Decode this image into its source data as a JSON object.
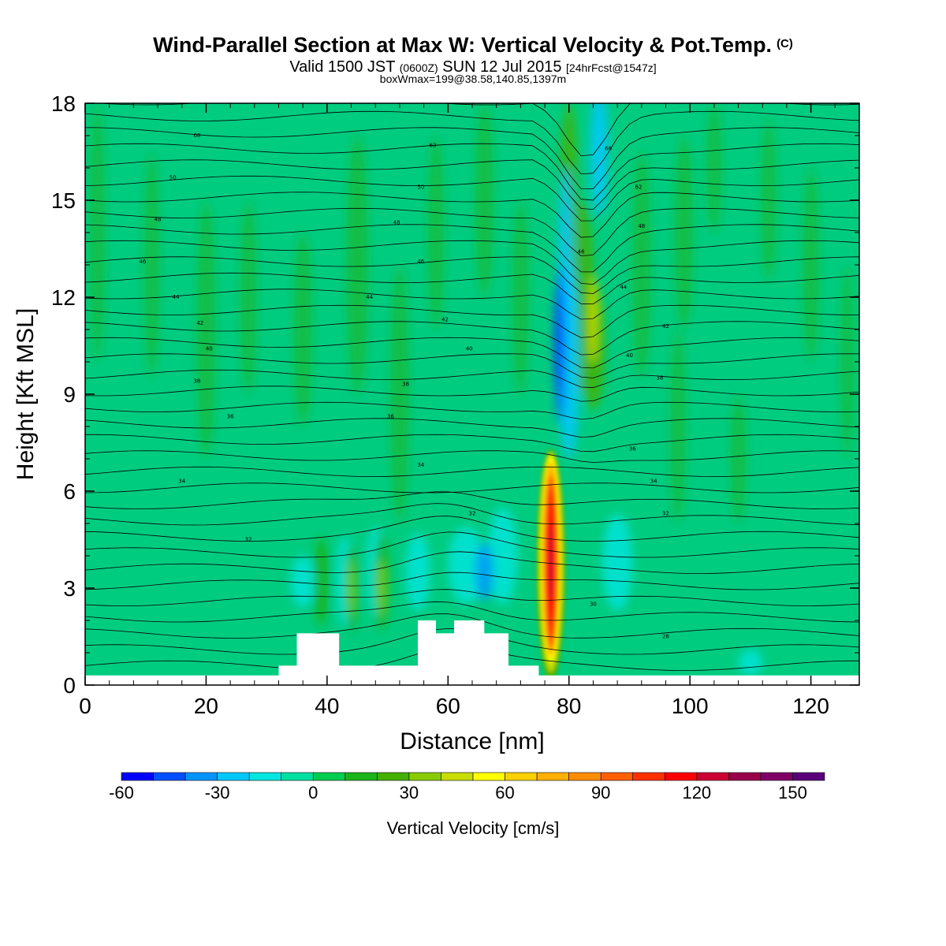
{
  "header": {
    "title": "Wind-Parallel Section at Max W: Vertical Velocity & Pot.Temp.",
    "title_units": "(C)",
    "valid_prefix": "Valid 1500 JST",
    "valid_utc": "(0600Z)",
    "valid_date": "SUN 12 Jul 2015",
    "forecast_info": "[24hrFcst@1547z]",
    "box_info": "boxWmax=199@38.58,140.85,1397m"
  },
  "chart_data": {
    "type": "heatmap",
    "xlabel": "Distance [nm]",
    "ylabel": "Height [Kft MSL]",
    "xlim": [
      0,
      128
    ],
    "ylim": [
      0,
      18
    ],
    "xticks": [
      0,
      20,
      40,
      60,
      80,
      100,
      120
    ],
    "yticks": [
      0,
      3,
      6,
      9,
      12,
      15,
      18
    ],
    "colorbar": {
      "label": "Vertical Velocity [cm/s]",
      "ticks": [
        -60,
        -30,
        0,
        30,
        60,
        90,
        120,
        150
      ],
      "levels": [
        -60,
        -50,
        -40,
        -30,
        -20,
        -10,
        0,
        10,
        20,
        30,
        40,
        50,
        60,
        70,
        80,
        90,
        100,
        110,
        120,
        130,
        140,
        150,
        160
      ],
      "colors": [
        "#0000ff",
        "#0050ff",
        "#0094ff",
        "#00c8ff",
        "#00e6e0",
        "#00e0a0",
        "#00cc50",
        "#1ab41a",
        "#44b000",
        "#88cc00",
        "#c8dc00",
        "#ffff00",
        "#ffd000",
        "#ffb000",
        "#ff8c00",
        "#ff6000",
        "#ff3000",
        "#ff0000",
        "#cc0033",
        "#99004c",
        "#800066",
        "#5a007a"
      ]
    },
    "background_color": "#00cc80",
    "terrain_heights_kft": [
      {
        "x": 32,
        "h": 0.6
      },
      {
        "x": 35,
        "h": 1.6
      },
      {
        "x": 40,
        "h": 1.6
      },
      {
        "x": 42,
        "h": 0.6
      },
      {
        "x": 52,
        "h": 0.6
      },
      {
        "x": 55,
        "h": 2.0
      },
      {
        "x": 58,
        "h": 1.6
      },
      {
        "x": 61,
        "h": 2.0
      },
      {
        "x": 66,
        "h": 1.6
      },
      {
        "x": 70,
        "h": 0.6
      },
      {
        "x": 75,
        "h": 0.3
      },
      {
        "x": 128,
        "h": 0.3
      }
    ],
    "features": [
      {
        "kind": "updraft",
        "x_center": 77,
        "z_bottom": 0.4,
        "z_top": 7.0,
        "max_w": 199
      },
      {
        "kind": "downdraft",
        "x_center": 78.5,
        "z_bottom": 8.0,
        "z_top": 13.0,
        "min_w": -50
      }
    ],
    "isentrope_labels": [
      {
        "x": 18.5,
        "z": 17.0,
        "text": "68"
      },
      {
        "x": 57.5,
        "z": 16.7,
        "text": "63"
      },
      {
        "x": 86.5,
        "z": 16.6,
        "text": "66"
      },
      {
        "x": 14.5,
        "z": 15.7,
        "text": "50"
      },
      {
        "x": 55.5,
        "z": 15.4,
        "text": "50"
      },
      {
        "x": 91.5,
        "z": 15.4,
        "text": "62"
      },
      {
        "x": 12,
        "z": 14.4,
        "text": "48"
      },
      {
        "x": 51.5,
        "z": 14.3,
        "text": "48"
      },
      {
        "x": 92,
        "z": 14.2,
        "text": "48"
      },
      {
        "x": 9.5,
        "z": 13.1,
        "text": "46"
      },
      {
        "x": 55.5,
        "z": 13.1,
        "text": "46"
      },
      {
        "x": 82,
        "z": 13.4,
        "text": "46"
      },
      {
        "x": 15,
        "z": 12.0,
        "text": "44"
      },
      {
        "x": 47,
        "z": 12.0,
        "text": "44"
      },
      {
        "x": 89,
        "z": 12.3,
        "text": "44"
      },
      {
        "x": 19,
        "z": 11.2,
        "text": "42"
      },
      {
        "x": 59.5,
        "z": 11.3,
        "text": "42"
      },
      {
        "x": 96,
        "z": 11.1,
        "text": "42"
      },
      {
        "x": 20.5,
        "z": 10.4,
        "text": "40"
      },
      {
        "x": 63.5,
        "z": 10.4,
        "text": "40"
      },
      {
        "x": 90,
        "z": 10.2,
        "text": "40"
      },
      {
        "x": 18.5,
        "z": 9.4,
        "text": "38"
      },
      {
        "x": 53,
        "z": 9.3,
        "text": "38"
      },
      {
        "x": 95,
        "z": 9.5,
        "text": "38"
      },
      {
        "x": 24,
        "z": 8.3,
        "text": "36"
      },
      {
        "x": 50.5,
        "z": 8.3,
        "text": "36"
      },
      {
        "x": 90.5,
        "z": 7.3,
        "text": "36"
      },
      {
        "x": 16,
        "z": 6.3,
        "text": "34"
      },
      {
        "x": 55.5,
        "z": 6.8,
        "text": "34"
      },
      {
        "x": 94,
        "z": 6.3,
        "text": "34"
      },
      {
        "x": 64,
        "z": 5.3,
        "text": "32"
      },
      {
        "x": 27,
        "z": 4.5,
        "text": "32"
      },
      {
        "x": 96,
        "z": 5.3,
        "text": "32"
      },
      {
        "x": 84,
        "z": 2.5,
        "text": "30"
      },
      {
        "x": 96,
        "z": 1.5,
        "text": "28"
      }
    ]
  }
}
